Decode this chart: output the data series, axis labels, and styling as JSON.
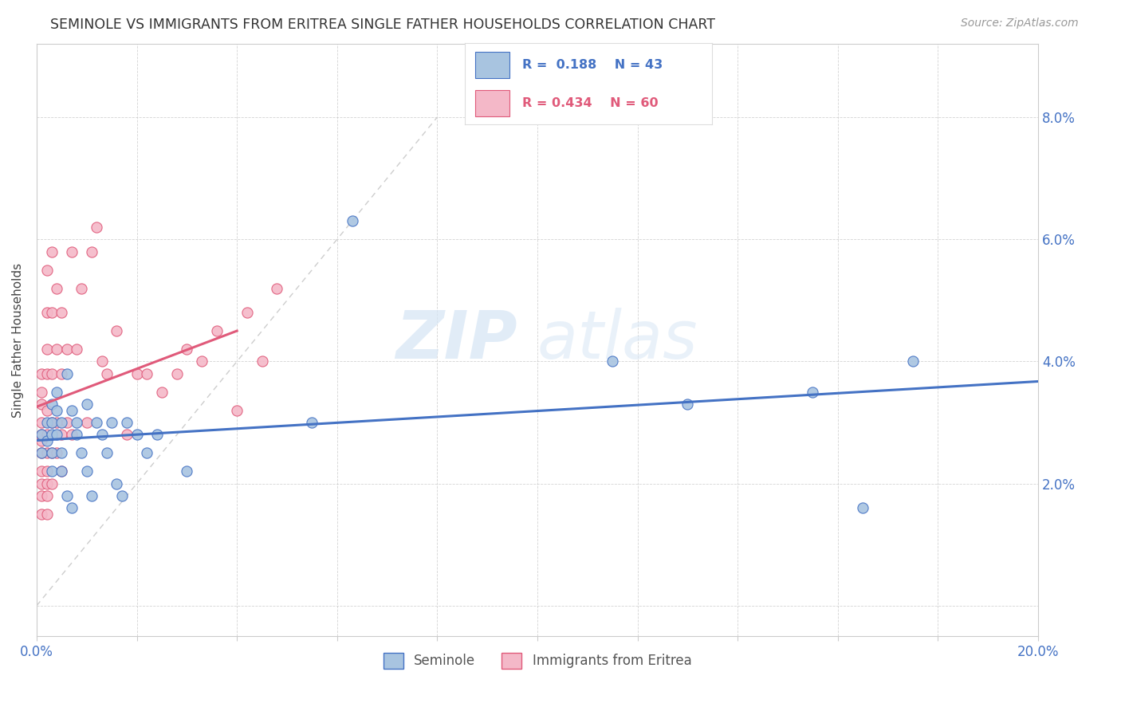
{
  "title": "SEMINOLE VS IMMIGRANTS FROM ERITREA SINGLE FATHER HOUSEHOLDS CORRELATION CHART",
  "source": "Source: ZipAtlas.com",
  "ylabel": "Single Father Households",
  "xlim": [
    0.0,
    0.2
  ],
  "ylim": [
    -0.005,
    0.092
  ],
  "xticks": [
    0.0,
    0.02,
    0.04,
    0.06,
    0.08,
    0.1,
    0.12,
    0.14,
    0.16,
    0.18,
    0.2
  ],
  "yticks": [
    0.0,
    0.02,
    0.04,
    0.06,
    0.08
  ],
  "seminole_color": "#a8c4e0",
  "eritrea_color": "#f4b8c8",
  "seminole_line_color": "#4472c4",
  "eritrea_line_color": "#e05a7a",
  "diagonal_line_color": "#c8c8c8",
  "R_seminole": 0.188,
  "N_seminole": 43,
  "R_eritrea": 0.434,
  "N_eritrea": 60,
  "legend_label_1": "Seminole",
  "legend_label_2": "Immigrants from Eritrea",
  "watermark_zip": "ZIP",
  "watermark_atlas": "atlas",
  "seminole_x": [
    0.001,
    0.001,
    0.002,
    0.002,
    0.003,
    0.003,
    0.003,
    0.003,
    0.003,
    0.004,
    0.004,
    0.004,
    0.005,
    0.005,
    0.005,
    0.006,
    0.006,
    0.007,
    0.007,
    0.008,
    0.008,
    0.009,
    0.01,
    0.01,
    0.011,
    0.012,
    0.013,
    0.014,
    0.015,
    0.016,
    0.017,
    0.018,
    0.02,
    0.022,
    0.024,
    0.03,
    0.055,
    0.063,
    0.115,
    0.13,
    0.155,
    0.165,
    0.175
  ],
  "seminole_y": [
    0.028,
    0.025,
    0.03,
    0.027,
    0.033,
    0.03,
    0.028,
    0.025,
    0.022,
    0.035,
    0.032,
    0.028,
    0.03,
    0.025,
    0.022,
    0.038,
    0.018,
    0.032,
    0.016,
    0.03,
    0.028,
    0.025,
    0.033,
    0.022,
    0.018,
    0.03,
    0.028,
    0.025,
    0.03,
    0.02,
    0.018,
    0.03,
    0.028,
    0.025,
    0.028,
    0.022,
    0.03,
    0.063,
    0.04,
    0.033,
    0.035,
    0.016,
    0.04
  ],
  "eritrea_x": [
    0.001,
    0.001,
    0.001,
    0.001,
    0.001,
    0.001,
    0.001,
    0.001,
    0.001,
    0.001,
    0.001,
    0.002,
    0.002,
    0.002,
    0.002,
    0.002,
    0.002,
    0.002,
    0.002,
    0.002,
    0.002,
    0.002,
    0.003,
    0.003,
    0.003,
    0.003,
    0.003,
    0.003,
    0.004,
    0.004,
    0.004,
    0.004,
    0.005,
    0.005,
    0.005,
    0.005,
    0.006,
    0.006,
    0.007,
    0.007,
    0.008,
    0.009,
    0.01,
    0.011,
    0.012,
    0.013,
    0.014,
    0.016,
    0.018,
    0.02,
    0.022,
    0.025,
    0.028,
    0.03,
    0.033,
    0.036,
    0.04,
    0.042,
    0.045,
    0.048
  ],
  "eritrea_y": [
    0.015,
    0.018,
    0.02,
    0.022,
    0.025,
    0.027,
    0.028,
    0.03,
    0.033,
    0.035,
    0.038,
    0.015,
    0.018,
    0.02,
    0.022,
    0.025,
    0.028,
    0.032,
    0.038,
    0.042,
    0.048,
    0.055,
    0.02,
    0.025,
    0.03,
    0.038,
    0.048,
    0.058,
    0.025,
    0.03,
    0.042,
    0.052,
    0.022,
    0.028,
    0.038,
    0.048,
    0.03,
    0.042,
    0.028,
    0.058,
    0.042,
    0.052,
    0.03,
    0.058,
    0.062,
    0.04,
    0.038,
    0.045,
    0.028,
    0.038,
    0.038,
    0.035,
    0.038,
    0.042,
    0.04,
    0.045,
    0.032,
    0.048,
    0.04,
    0.052
  ]
}
